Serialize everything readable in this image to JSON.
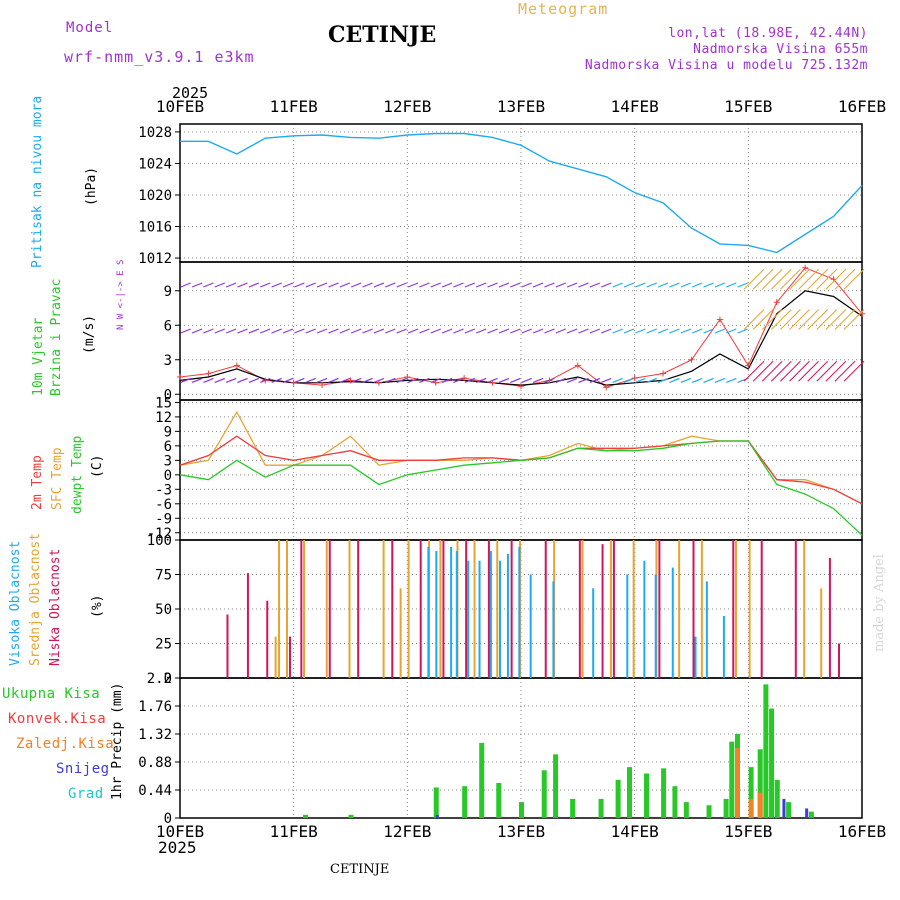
{
  "header": {
    "model_label": "Model",
    "model_name": "wrf-nmm_v3.9.1 e3km",
    "title": "CETINJE",
    "meteogram_label": "Meteogram",
    "lonlat": "lon,lat (18.98E, 42.44N)",
    "altitude": "Nadmorska Visina 655m",
    "model_altitude": "Nadmorska Visina u modelu 725.132m",
    "year_top": "2025",
    "year_bottom": "2025",
    "footer_title": "CETINJE",
    "signature": "made by Angel"
  },
  "colors": {
    "pressure": "#1eaaf0",
    "wind_speed": "#000000",
    "wind_gust": "#f03c3c",
    "temp2m": "#f03c3c",
    "sfc_temp": "#e6a532",
    "dewpt": "#28c828",
    "cloud_high": "#1eaaf0",
    "cloud_mid": "#e6a532",
    "cloud_low": "#d2145a",
    "precip_total": "#28c828",
    "precip_conv": "#f03c3c",
    "precip_frozen": "#f08228",
    "precip_snow": "#3c3cdc",
    "precip_hail": "#1ec8c8",
    "label_purple": "#a032d2"
  },
  "chart_data": [
    {
      "type": "line",
      "name": "pressure",
      "ylabel_color_text": "Pritisak na nivou mora",
      "unit": "(hPa)",
      "x": [
        0,
        0.25,
        0.5,
        0.75,
        1,
        1.25,
        1.5,
        1.75,
        2,
        2.25,
        2.5,
        2.75,
        3,
        3.25,
        3.5,
        3.75,
        4,
        4.25,
        4.5,
        4.75,
        5,
        5.25,
        5.5,
        5.75,
        6
      ],
      "values": [
        1026.8,
        1026.8,
        1025.2,
        1027.2,
        1027.5,
        1027.6,
        1027.3,
        1027.2,
        1027.6,
        1027.8,
        1027.8,
        1027.3,
        1026.3,
        1024.3,
        1023.3,
        1022.3,
        1020.3,
        1019.0,
        1015.8,
        1013.8,
        1013.6,
        1012.7,
        1015.0,
        1017.3,
        1021.2
      ],
      "yticks": [
        1012,
        1016,
        1020,
        1024,
        1028
      ],
      "ylim": [
        1011.5,
        1029
      ]
    },
    {
      "type": "line",
      "name": "wind",
      "ylabel_color_text": "10m Vjetar Brzina i Pravac",
      "unit": "(m/s)",
      "compass": "N  W <-|-> E  S",
      "x": [
        0,
        0.25,
        0.5,
        0.75,
        1,
        1.25,
        1.5,
        1.75,
        2,
        2.25,
        2.5,
        2.75,
        3,
        3.25,
        3.5,
        3.75,
        4,
        4.25,
        4.5,
        4.75,
        5,
        5.25,
        5.5,
        5.75,
        6
      ],
      "speed": [
        1.2,
        1.5,
        2.2,
        1.3,
        1.0,
        1.0,
        1.1,
        1.0,
        1.2,
        1.3,
        1.2,
        1.0,
        0.8,
        1.0,
        1.5,
        0.8,
        1.0,
        1.2,
        2.0,
        3.5,
        2.2,
        7.0,
        9.0,
        8.5,
        6.8
      ],
      "gust": [
        1.5,
        1.8,
        2.5,
        1.2,
        1.0,
        0.8,
        1.2,
        1.0,
        1.5,
        1.0,
        1.4,
        1.0,
        0.7,
        1.2,
        2.5,
        0.6,
        1.4,
        1.8,
        3.0,
        6.5,
        2.5,
        8.0,
        11.0,
        10.0,
        7.0
      ],
      "yticks": [
        0,
        3,
        6,
        9
      ],
      "ylim": [
        -0.5,
        11.5
      ]
    },
    {
      "type": "line",
      "name": "temperature",
      "series_labels": [
        "2m Temp",
        "SFC Temp",
        "dewpt Temp"
      ],
      "unit": "(C)",
      "x": [
        0,
        0.25,
        0.5,
        0.75,
        1,
        1.25,
        1.5,
        1.75,
        2,
        2.25,
        2.5,
        2.75,
        3,
        3.25,
        3.5,
        3.75,
        4,
        4.25,
        4.5,
        4.75,
        5,
        5.25,
        5.5,
        5.75,
        6
      ],
      "t2m": [
        2,
        4,
        8,
        4,
        3,
        4,
        5,
        3,
        3,
        3,
        3.5,
        3.5,
        3,
        3.5,
        5.5,
        5.5,
        5.5,
        6,
        6.5,
        7,
        7,
        -1,
        -1.5,
        -3,
        -6
      ],
      "sfc": [
        2,
        3,
        13,
        2,
        2,
        4,
        8,
        2,
        3,
        3,
        3,
        3.5,
        3,
        4,
        6.5,
        5,
        5.5,
        6,
        8,
        7,
        7,
        -1,
        -1,
        -3,
        -6
      ],
      "dewpt": [
        0,
        -1,
        3,
        -0.5,
        2,
        2,
        2,
        -2,
        0,
        1,
        2,
        2.5,
        3,
        3.5,
        5.5,
        5,
        5,
        5.5,
        6.5,
        7,
        7,
        -2,
        -4,
        -7,
        -12.5
      ],
      "yticks": [
        -12,
        -9,
        -6,
        -3,
        0,
        3,
        6,
        9,
        12,
        15
      ],
      "ylim": [
        -13.5,
        15.5
      ]
    },
    {
      "type": "bar",
      "name": "clouds",
      "series_labels": [
        "Visoka Oblacnost",
        "Srednja Oblacnost",
        "Niska Oblacnost"
      ],
      "unit": "(%)",
      "yticks": [
        0,
        25,
        50,
        75,
        100
      ],
      "ylim": [
        0,
        100
      ],
      "low": [
        [
          0.4,
          46
        ],
        [
          0.58,
          76
        ],
        [
          0.75,
          56
        ],
        [
          0.95,
          30
        ],
        [
          1.05,
          100
        ],
        [
          1.3,
          100
        ],
        [
          1.55,
          100
        ],
        [
          1.85,
          100
        ],
        [
          2.1,
          100
        ],
        [
          2.3,
          100
        ],
        [
          2.5,
          100
        ],
        [
          2.7,
          100
        ],
        [
          2.9,
          100
        ],
        [
          3.2,
          100
        ],
        [
          3.5,
          100
        ],
        [
          3.7,
          97
        ],
        [
          3.8,
          100
        ],
        [
          4.2,
          100
        ],
        [
          4.5,
          100
        ],
        [
          4.85,
          100
        ],
        [
          5.1,
          100
        ],
        [
          5.4,
          100
        ],
        [
          5.7,
          87
        ],
        [
          5.78,
          25
        ]
      ],
      "mid": [
        [
          0.85,
          30
        ],
        [
          0.88,
          100
        ],
        [
          0.95,
          100
        ],
        [
          1.1,
          100
        ],
        [
          1.3,
          100
        ],
        [
          1.5,
          100
        ],
        [
          1.8,
          100
        ],
        [
          1.95,
          65
        ],
        [
          2.02,
          100
        ],
        [
          2.2,
          100
        ],
        [
          2.3,
          100
        ],
        [
          2.45,
          100
        ],
        [
          2.6,
          100
        ],
        [
          2.8,
          100
        ],
        [
          3.0,
          100
        ],
        [
          3.3,
          100
        ],
        [
          3.55,
          100
        ],
        [
          3.8,
          100
        ],
        [
          4.0,
          100
        ],
        [
          4.2,
          100
        ],
        [
          4.4,
          100
        ],
        [
          4.6,
          100
        ],
        [
          4.9,
          100
        ],
        [
          5.02,
          100
        ],
        [
          5.5,
          100
        ],
        [
          5.65,
          65
        ]
      ],
      "high": [
        [
          2.15,
          95
        ],
        [
          2.22,
          92
        ],
        [
          2.35,
          95
        ],
        [
          2.4,
          92
        ],
        [
          2.5,
          85
        ],
        [
          2.6,
          85
        ],
        [
          2.7,
          92
        ],
        [
          2.78,
          85
        ],
        [
          2.85,
          90
        ],
        [
          2.95,
          95
        ],
        [
          3.05,
          75
        ],
        [
          3.25,
          70
        ],
        [
          3.6,
          65
        ],
        [
          3.9,
          75
        ],
        [
          4.05,
          85
        ],
        [
          4.15,
          75
        ],
        [
          4.3,
          80
        ],
        [
          4.5,
          30
        ],
        [
          4.6,
          70
        ],
        [
          4.75,
          45
        ]
      ]
    },
    {
      "type": "bar",
      "name": "precipitation",
      "series_labels": [
        "Ukupna Kisa",
        "Konvek.Kisa",
        "Zaledj.Kisa",
        "Snijeg",
        "Grad"
      ],
      "unit": "1hr Precip (mm)",
      "yticks": [
        0,
        0.44,
        0.88,
        1.32,
        1.76,
        2.2
      ],
      "ylim": [
        0,
        2.2
      ],
      "total": [
        [
          1.1,
          0.05
        ],
        [
          1.5,
          0.05
        ],
        [
          2.25,
          0.48
        ],
        [
          2.5,
          0.5
        ],
        [
          2.65,
          1.18
        ],
        [
          2.8,
          0.55
        ],
        [
          3.0,
          0.25
        ],
        [
          3.2,
          0.75
        ],
        [
          3.3,
          1.0
        ],
        [
          3.45,
          0.3
        ],
        [
          3.7,
          0.3
        ],
        [
          3.85,
          0.6
        ],
        [
          3.95,
          0.8
        ],
        [
          4.1,
          0.7
        ],
        [
          4.25,
          0.78
        ],
        [
          4.35,
          0.5
        ],
        [
          4.45,
          0.25
        ],
        [
          4.65,
          0.2
        ],
        [
          4.8,
          0.3
        ],
        [
          4.85,
          1.2
        ],
        [
          4.9,
          1.32
        ],
        [
          5.02,
          0.8
        ],
        [
          5.1,
          1.08
        ],
        [
          5.15,
          2.1
        ],
        [
          5.2,
          1.72
        ],
        [
          5.25,
          0.6
        ],
        [
          5.35,
          0.25
        ],
        [
          5.55,
          0.1
        ]
      ],
      "frozen": [
        [
          4.9,
          1.1
        ],
        [
          5.02,
          0.3
        ],
        [
          5.1,
          0.4
        ]
      ],
      "snow": [
        [
          2.25,
          0.05
        ],
        [
          5.3,
          0.3
        ],
        [
          5.5,
          0.15
        ]
      ]
    }
  ],
  "xaxis": {
    "labels": [
      "10FEB",
      "11FEB",
      "12FEB",
      "13FEB",
      "14FEB",
      "15FEB",
      "16FEB"
    ]
  }
}
